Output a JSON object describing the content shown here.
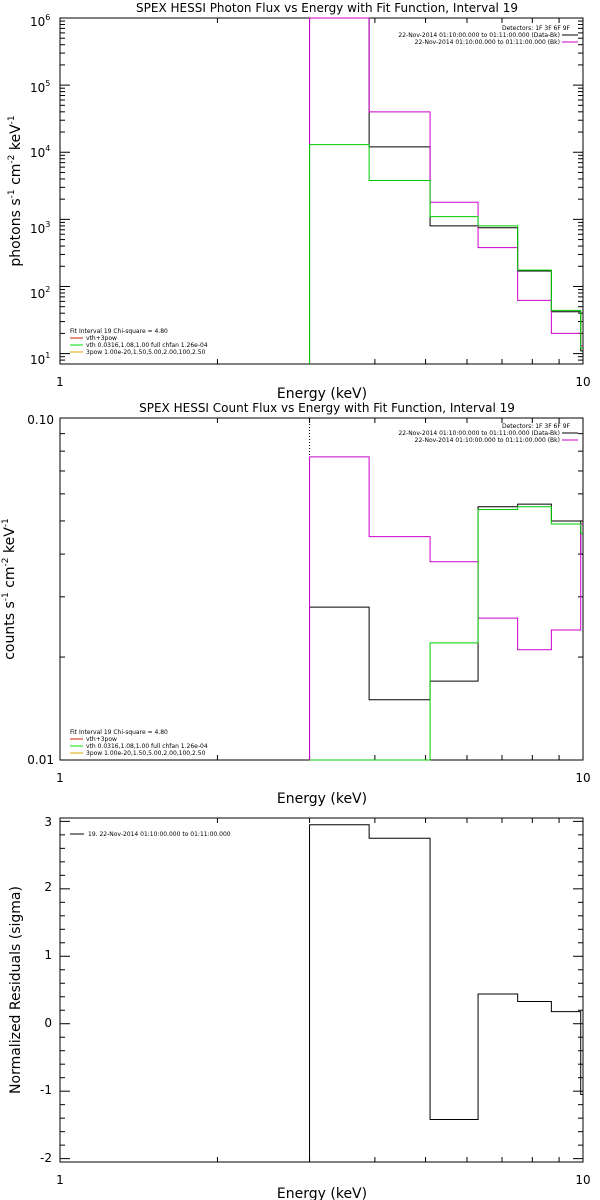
{
  "chart_data": [
    {
      "type": "line",
      "title": "SPEX HESSI Photon Flux vs Energy with Fit Function, Interval 19",
      "xlabel": "Energy (keV)",
      "ylabel_parts": [
        "photons s",
        "-1",
        " cm",
        "-2",
        " keV",
        "-1"
      ],
      "xscale": "log",
      "yscale": "log",
      "xlim": [
        1,
        10
      ],
      "ylim": [
        7,
        1000000
      ],
      "x_ticks": [
        {
          "value": 1,
          "label": "1"
        },
        {
          "value": 10,
          "label": "10"
        }
      ],
      "y_ticks": [
        {
          "value": 10,
          "base": "10",
          "exp": "1"
        },
        {
          "value": 100,
          "base": "10",
          "exp": "2"
        },
        {
          "value": 1000,
          "base": "10",
          "exp": "3"
        },
        {
          "value": 10000,
          "base": "10",
          "exp": "4"
        },
        {
          "value": 100000,
          "base": "10",
          "exp": "5"
        },
        {
          "value": 1000000,
          "base": "10",
          "exp": "6"
        }
      ],
      "marker_x": 3.0,
      "top_legend": {
        "lines": [
          {
            "text": "Detectors: 1F 3F 6F 9F",
            "color": ""
          },
          {
            "text": "22-Nov-2014 01:10:00.000 to 01:11:00.000 (Data-Bk)",
            "color": "#000000"
          },
          {
            "text": "22-Nov-2014 01:10:00.000 to 01:11:00.000 (Bk)",
            "color": "#cc00cc"
          }
        ]
      },
      "bottom_legend": {
        "lines": [
          {
            "text": "Fit Interval 19   Chi-square = 4.80",
            "color": ""
          },
          {
            "text": "vth+3pow",
            "color": "#cc2200"
          },
          {
            "text": "vth 0.0316,1.08,1.00  full chfan 1.26e-04",
            "color": "#00dd00"
          },
          {
            "text": "3pow 1.00e-20,1.50,5.00,2.00,100,2.50",
            "color": "#ddaa00"
          }
        ]
      },
      "series": [
        {
          "color": "#000000",
          "bins": [
            [
              3.0,
              3.9,
              1000000
            ],
            [
              3.9,
              5.1,
              12000
            ],
            [
              5.1,
              6.3,
              800
            ],
            [
              6.3,
              7.5,
              750
            ],
            [
              7.5,
              8.7,
              170
            ],
            [
              8.7,
              9.9,
              42
            ],
            [
              9.9,
              10,
              11
            ]
          ]
        },
        {
          "color": "#cc00cc",
          "bins": [
            [
              3.0,
              3.9,
              1000000
            ],
            [
              3.9,
              5.1,
              40000
            ],
            [
              5.1,
              6.3,
              1800
            ],
            [
              6.3,
              7.5,
              380
            ],
            [
              7.5,
              8.7,
              62
            ],
            [
              8.7,
              9.9,
              20
            ],
            [
              9.9,
              10,
              13
            ]
          ]
        },
        {
          "color": "#00cc00",
          "bins": [
            [
              3.0,
              3.9,
              13000
            ],
            [
              3.9,
              5.1,
              3800
            ],
            [
              5.1,
              6.3,
              1100
            ],
            [
              6.3,
              7.5,
              800
            ],
            [
              7.5,
              8.7,
              175
            ],
            [
              8.7,
              9.9,
              44
            ],
            [
              9.9,
              10,
              12
            ]
          ]
        }
      ]
    },
    {
      "type": "line",
      "title": "SPEX HESSI Count Flux vs Energy with Fit Function, Interval 19",
      "xlabel": "Energy (keV)",
      "ylabel_parts": [
        "counts s",
        "-1",
        " cm",
        "-2",
        " keV",
        "-1"
      ],
      "xscale": "log",
      "yscale": "log",
      "xlim": [
        1,
        10
      ],
      "ylim": [
        0.01,
        0.1
      ],
      "x_ticks": [
        {
          "value": 1,
          "label": "1"
        },
        {
          "value": 10,
          "label": "10"
        }
      ],
      "y_ticks": [
        {
          "value": 0.01,
          "label": "0.01"
        },
        {
          "value": 0.1,
          "label": "0.10"
        }
      ],
      "marker_x": 3.0,
      "top_legend": {
        "lines": [
          {
            "text": "Detectors: 1F 3F 6F 9F",
            "color": ""
          },
          {
            "text": "22-Nov-2014 01:10:00.000 to 01:11:00.000 (Data-Bk)",
            "color": "#000000"
          },
          {
            "text": "22-Nov-2014 01:10:00.000 to 01:11:00.000 (Bk)",
            "color": "#cc00cc"
          }
        ]
      },
      "bottom_legend": {
        "lines": [
          {
            "text": "Fit Interval 19   Chi-square = 4.80",
            "color": ""
          },
          {
            "text": "vth+3pow",
            "color": "#cc2200"
          },
          {
            "text": "vth 0.0316,1.08,1.00  full chfan 1.26e-04",
            "color": "#00dd00"
          },
          {
            "text": "3pow 1.00e-20,1.50,5.00,2.00,100,2.50",
            "color": "#ddaa00"
          }
        ]
      },
      "series": [
        {
          "color": "#000000",
          "bins": [
            [
              3.0,
              3.9,
              0.028
            ],
            [
              3.9,
              5.1,
              0.015
            ],
            [
              5.1,
              6.3,
              0.017
            ],
            [
              6.3,
              7.5,
              0.055
            ],
            [
              7.5,
              8.7,
              0.056
            ],
            [
              8.7,
              9.9,
              0.05
            ],
            [
              9.9,
              10,
              0.04
            ]
          ]
        },
        {
          "color": "#cc00cc",
          "bins": [
            [
              3.0,
              3.9,
              0.077
            ],
            [
              3.9,
              5.1,
              0.045
            ],
            [
              5.1,
              6.3,
              0.038
            ],
            [
              6.3,
              7.5,
              0.026
            ],
            [
              7.5,
              8.7,
              0.021
            ],
            [
              8.7,
              9.9,
              0.024
            ],
            [
              9.9,
              10,
              0.049
            ]
          ]
        },
        {
          "color": "#00cc00",
          "bins": [
            [
              3.0,
              3.9,
              0.0085
            ],
            [
              3.9,
              5.1,
              0.0085
            ],
            [
              5.1,
              6.3,
              0.022
            ],
            [
              6.3,
              7.5,
              0.054
            ],
            [
              7.5,
              8.7,
              0.055
            ],
            [
              8.7,
              9.9,
              0.049
            ],
            [
              9.9,
              10,
              0.046
            ]
          ]
        }
      ]
    },
    {
      "type": "line",
      "title": "",
      "xlabel": "Energy (keV)",
      "ylabel_parts": [
        "Normalized Residuals (sigma)"
      ],
      "xscale": "log",
      "yscale": "linear",
      "xlim": [
        1,
        10
      ],
      "ylim": [
        -2.05,
        3.05
      ],
      "x_ticks": [
        {
          "value": 1,
          "label": "1"
        },
        {
          "value": 10,
          "label": "10"
        }
      ],
      "y_ticks": [
        {
          "value": -2,
          "label": "-2"
        },
        {
          "value": -1,
          "label": "-1"
        },
        {
          "value": 0,
          "label": "0"
        },
        {
          "value": 1,
          "label": "1"
        },
        {
          "value": 2,
          "label": "2"
        },
        {
          "value": 3,
          "label": "3"
        }
      ],
      "top_legend": {
        "lines": [
          {
            "text": "19. 22-Nov-2014 01:10:00.000 to 01:11:00.000",
            "color": "#000000"
          }
        ]
      },
      "series": [
        {
          "color": "#000000",
          "bins": [
            [
              3.0,
              3.9,
              2.95
            ],
            [
              3.9,
              5.1,
              2.75
            ],
            [
              5.1,
              6.3,
              -1.42
            ],
            [
              6.3,
              7.5,
              0.44
            ],
            [
              7.5,
              8.7,
              0.33
            ],
            [
              8.7,
              9.9,
              0.18
            ],
            [
              9.9,
              10,
              -1.05
            ]
          ]
        }
      ]
    }
  ]
}
